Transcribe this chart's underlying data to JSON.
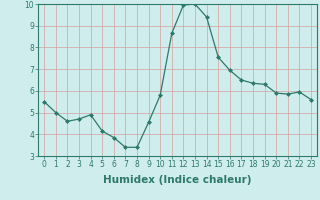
{
  "x": [
    0,
    1,
    2,
    3,
    4,
    5,
    6,
    7,
    8,
    9,
    10,
    11,
    12,
    13,
    14,
    15,
    16,
    17,
    18,
    19,
    20,
    21,
    22,
    23
  ],
  "y": [
    5.5,
    5.0,
    4.6,
    4.7,
    4.9,
    4.15,
    3.85,
    3.4,
    3.4,
    4.55,
    5.8,
    8.65,
    9.95,
    10.0,
    9.4,
    7.55,
    6.95,
    6.5,
    6.35,
    6.3,
    5.9,
    5.85,
    5.95,
    5.6
  ],
  "xlabel": "Humidex (Indice chaleur)",
  "ylim": [
    3,
    10
  ],
  "xlim": [
    -0.5,
    23.5
  ],
  "yticks": [
    3,
    4,
    5,
    6,
    7,
    8,
    9,
    10
  ],
  "xticks": [
    0,
    1,
    2,
    3,
    4,
    5,
    6,
    7,
    8,
    9,
    10,
    11,
    12,
    13,
    14,
    15,
    16,
    17,
    18,
    19,
    20,
    21,
    22,
    23
  ],
  "line_color": "#2d7a6a",
  "marker": "D",
  "marker_size": 2.0,
  "bg_color": "#d0eded",
  "grid_color": "#b0d8d8",
  "tick_label_fontsize": 5.5,
  "xlabel_fontsize": 7.5
}
